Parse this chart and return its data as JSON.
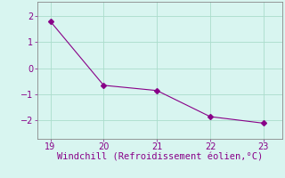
{
  "x": [
    19,
    20,
    21,
    22,
    23
  ],
  "y": [
    1.8,
    -0.65,
    -0.85,
    -1.85,
    -2.1
  ],
  "line_color": "#880088",
  "marker": "D",
  "marker_size": 3,
  "background_color": "#d8f5f0",
  "grid_color": "#aaddcc",
  "xlabel": "Windchill (Refroidissement éolien,°C)",
  "xlabel_color": "#880088",
  "xlabel_fontsize": 7.5,
  "tick_color": "#880088",
  "tick_fontsize": 7,
  "xlim": [
    18.75,
    23.35
  ],
  "ylim": [
    -2.7,
    2.55
  ],
  "yticks": [
    -2,
    -1,
    0,
    1,
    2
  ],
  "xticks": [
    19,
    20,
    21,
    22,
    23
  ],
  "spine_color": "#888888",
  "figsize": [
    3.2,
    2.0
  ],
  "dpi": 100
}
